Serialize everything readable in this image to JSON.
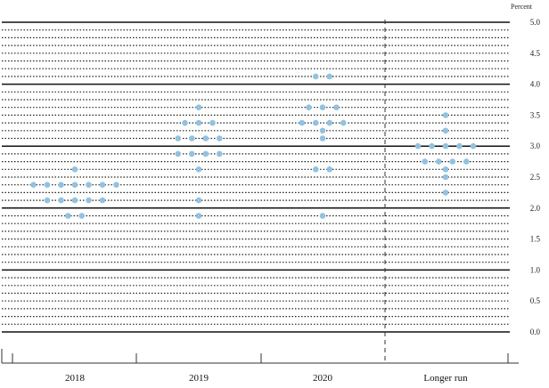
{
  "chart_data": {
    "type": "scatter",
    "y_unit_label": "Percent",
    "ylim": [
      0,
      5
    ],
    "y_ticks": [
      "5.0",
      "4.5",
      "4.0",
      "3.5",
      "3.0",
      "2.5",
      "2.0",
      "1.5",
      "1.0",
      "0.5",
      "0.0"
    ],
    "categories": [
      "2018",
      "2019",
      "2020",
      "Longer run"
    ],
    "grid": "solid lines at whole numbers, dotted lines at eighths",
    "marker_color": "#92c2df",
    "series": [
      {
        "category": "2018",
        "points": [
          {
            "y": 2.625,
            "count": 1
          },
          {
            "y": 2.375,
            "count": 7
          },
          {
            "y": 2.125,
            "count": 5
          },
          {
            "y": 1.875,
            "count": 2
          }
        ]
      },
      {
        "category": "2019",
        "points": [
          {
            "y": 3.625,
            "count": 1
          },
          {
            "y": 3.375,
            "count": 3
          },
          {
            "y": 3.125,
            "count": 4
          },
          {
            "y": 2.875,
            "count": 4
          },
          {
            "y": 2.625,
            "count": 1
          },
          {
            "y": 2.125,
            "count": 1
          },
          {
            "y": 1.875,
            "count": 1
          }
        ]
      },
      {
        "category": "2020",
        "points": [
          {
            "y": 4.125,
            "count": 2
          },
          {
            "y": 3.625,
            "count": 3
          },
          {
            "y": 3.375,
            "count": 4
          },
          {
            "y": 3.25,
            "count": 1
          },
          {
            "y": 3.125,
            "count": 1
          },
          {
            "y": 2.625,
            "count": 2
          },
          {
            "y": 1.875,
            "count": 1
          }
        ]
      },
      {
        "category": "Longer run",
        "points": [
          {
            "y": 3.5,
            "count": 1
          },
          {
            "y": 3.25,
            "count": 1
          },
          {
            "y": 3.0,
            "count": 5
          },
          {
            "y": 2.75,
            "count": 4
          },
          {
            "y": 2.625,
            "count": 1
          },
          {
            "y": 2.5,
            "count": 1
          },
          {
            "y": 2.25,
            "count": 1
          }
        ]
      }
    ]
  }
}
